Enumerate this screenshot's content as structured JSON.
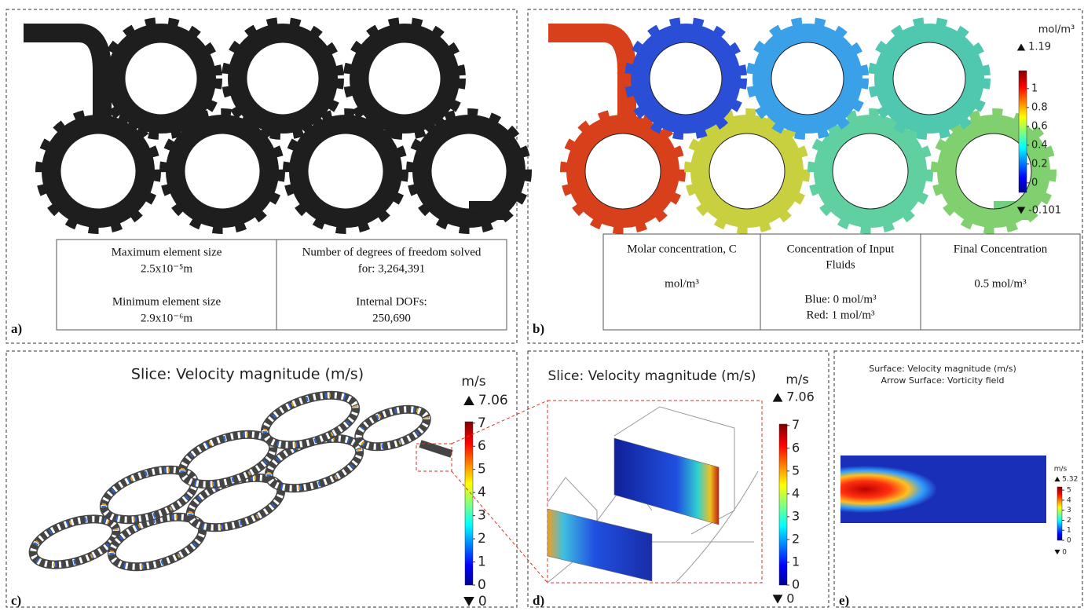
{
  "panels": {
    "a": {
      "label": "a)",
      "table": {
        "cells": [
          {
            "lines": [
              "Maximum element size",
              "2.5x10⁻⁵m",
              "Minimum element size",
              "2.9x10⁻⁶m"
            ]
          },
          {
            "lines": [
              "Number of degrees of freedom solved",
              "for: 3,264,391",
              "Internal DOFs:",
              "250,690"
            ]
          }
        ]
      }
    },
    "b": {
      "label": "b)",
      "colorbar": {
        "unit": "mol/m³",
        "max": 1.19,
        "min": -0.101,
        "ticks": [
          1,
          0.8,
          0.6,
          0.4,
          0.2,
          0
        ]
      },
      "table": {
        "cells": [
          {
            "lines": [
              "Molar concentration, C",
              "mol/m³"
            ]
          },
          {
            "lines": [
              "Concentration of Input",
              "Fluids",
              "Blue: 0 mol/m³",
              "Red: 1 mol/m³"
            ]
          },
          {
            "lines": [
              "Final Concentration",
              "0.5 mol/m³"
            ]
          }
        ]
      }
    },
    "c": {
      "label": "c)",
      "title": "Slice: Velocity magnitude (m/s)",
      "colorbar": {
        "unit": "m/s",
        "max": 7.06,
        "min": 0,
        "ticks": [
          7,
          6,
          5,
          4,
          3,
          2,
          1,
          0
        ]
      }
    },
    "d": {
      "label": "d)",
      "title": "Slice: Velocity magnitude (m/s)",
      "colorbar": {
        "unit": "m/s",
        "max": 7.06,
        "min": 0,
        "ticks": [
          7,
          6,
          5,
          4,
          3,
          2,
          1,
          0
        ]
      }
    },
    "e": {
      "label": "e)",
      "titles": [
        "Surface: Velocity magnitude (m/s)",
        "Arrow Surface: Vorticity field"
      ],
      "colorbar": {
        "unit": "m/s",
        "max": 5.32,
        "min": 0,
        "ticks": [
          5,
          4,
          3,
          2,
          1,
          0
        ]
      }
    }
  }
}
